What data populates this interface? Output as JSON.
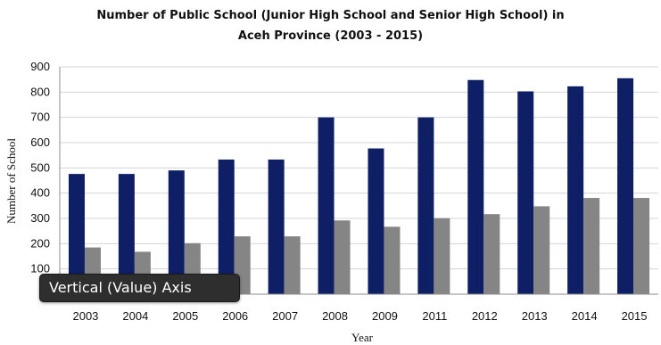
{
  "chart_data": {
    "type": "bar",
    "title_lines": [
      "Number of Public School (Junior High School and Senior High School) in",
      "Aceh Province (2003 - 2015)"
    ],
    "xlabel": "Year",
    "ylabel": "Number of School",
    "categories": [
      "2003",
      "2004",
      "2005",
      "2006",
      "2007",
      "2008",
      "2009",
      "2011",
      "2012",
      "2013",
      "2014",
      "2015"
    ],
    "series": [
      {
        "values": [
          476,
          476,
          490,
          533,
          533,
          700,
          577,
          700,
          848,
          803,
          823,
          855
        ],
        "color": "#0f1f66"
      },
      {
        "values": [
          185,
          168,
          202,
          229,
          229,
          292,
          267,
          301,
          317,
          348,
          381,
          381
        ],
        "color": "#858585"
      }
    ],
    "ylim": [
      0,
      900
    ],
    "yticks": [
      0,
      100,
      200,
      300,
      400,
      500,
      600,
      700,
      800,
      900
    ],
    "grid": true
  },
  "tooltip": {
    "text": "Vertical (Value) Axis"
  }
}
